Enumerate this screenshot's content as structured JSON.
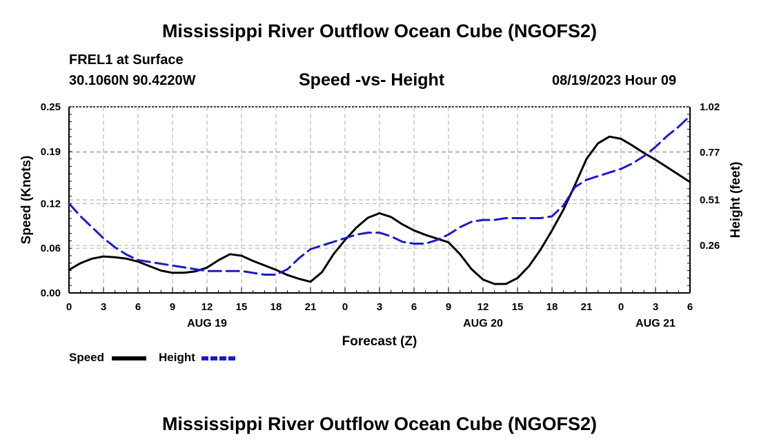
{
  "page": {
    "title_top": "Mississippi River Outflow Ocean Cube (NGOFS2)",
    "title_bottom": "Mississippi River Outflow Ocean Cube (NGOFS2)",
    "station": "FREL1 at Surface",
    "coords": "30.1060N  90.4220W",
    "datetime": "08/19/2023 Hour 09"
  },
  "legend": {
    "speed_label": "Speed",
    "height_label": "Height",
    "speed_color": "#000000",
    "height_color": "#1a1acc"
  },
  "chart_data": {
    "type": "line",
    "title": "Speed -vs- Height",
    "xlabel": "Forecast (Z)",
    "ylabel": "Speed (Knots)",
    "ylabel_right": "Height (feet)",
    "x_range": [
      0,
      54
    ],
    "ylim": [
      0,
      0.25
    ],
    "ylim_right": [
      0.0,
      1.02
    ],
    "yticks": [
      0.0,
      0.06,
      0.12,
      0.19,
      0.25
    ],
    "yticks_labels": [
      "0.00",
      "0.06",
      "0.12",
      "0.19",
      "0.25"
    ],
    "yticks_right": [
      0.26,
      0.51,
      0.77,
      1.02
    ],
    "yticks_right_labels": [
      "0.26",
      "0.51",
      "0.77",
      "1.02"
    ],
    "xticks": [
      0,
      3,
      6,
      9,
      12,
      15,
      18,
      21,
      24,
      27,
      30,
      33,
      36,
      39,
      42,
      45,
      48,
      51,
      54
    ],
    "xtick_labels": [
      "0",
      "3",
      "6",
      "9",
      "12",
      "15",
      "18",
      "21",
      "0",
      "3",
      "6",
      "9",
      "12",
      "15",
      "18",
      "21",
      "0",
      "3",
      "6"
    ],
    "date_labels": [
      {
        "hour": 12,
        "text": "AUG 19"
      },
      {
        "hour": 36,
        "text": "AUG 20"
      },
      {
        "hour": 51,
        "text": "AUG 21"
      }
    ],
    "grid": true,
    "series": [
      {
        "name": "Speed",
        "axis": "left",
        "x": [
          0,
          1,
          2,
          3,
          4,
          5,
          6,
          7,
          8,
          9,
          10,
          11,
          12,
          13,
          14,
          15,
          16,
          17,
          18,
          19,
          20,
          21,
          22,
          23,
          24,
          25,
          26,
          27,
          28,
          29,
          30,
          31,
          32,
          33,
          34,
          35,
          36,
          37,
          38,
          39,
          40,
          41,
          42,
          43,
          44,
          45,
          46,
          47,
          48,
          49,
          50,
          51,
          52,
          53,
          54
        ],
        "values": [
          0.031,
          0.04,
          0.046,
          0.049,
          0.048,
          0.046,
          0.042,
          0.036,
          0.03,
          0.027,
          0.027,
          0.029,
          0.034,
          0.044,
          0.052,
          0.05,
          0.043,
          0.037,
          0.031,
          0.024,
          0.019,
          0.015,
          0.028,
          0.052,
          0.071,
          0.088,
          0.101,
          0.107,
          0.102,
          0.092,
          0.084,
          0.078,
          0.073,
          0.068,
          0.052,
          0.032,
          0.018,
          0.012,
          0.012,
          0.02,
          0.036,
          0.058,
          0.084,
          0.112,
          0.145,
          0.18,
          0.201,
          0.21,
          0.207,
          0.198,
          0.188,
          0.179,
          0.169,
          0.159,
          0.149
        ]
      },
      {
        "name": "Height",
        "axis": "right",
        "x": [
          0,
          1,
          2,
          3,
          4,
          5,
          6,
          7,
          8,
          9,
          10,
          11,
          12,
          13,
          14,
          15,
          16,
          17,
          18,
          19,
          20,
          21,
          22,
          23,
          24,
          25,
          26,
          27,
          28,
          29,
          30,
          31,
          32,
          33,
          34,
          35,
          36,
          37,
          38,
          39,
          40,
          41,
          42,
          43,
          44,
          45,
          46,
          47,
          48,
          49,
          50,
          51,
          52,
          53,
          54
        ],
        "values": [
          0.49,
          0.42,
          0.36,
          0.3,
          0.25,
          0.21,
          0.18,
          0.17,
          0.16,
          0.15,
          0.14,
          0.13,
          0.12,
          0.12,
          0.12,
          0.12,
          0.11,
          0.1,
          0.1,
          0.13,
          0.19,
          0.24,
          0.26,
          0.28,
          0.3,
          0.32,
          0.33,
          0.33,
          0.31,
          0.28,
          0.27,
          0.27,
          0.29,
          0.32,
          0.36,
          0.39,
          0.4,
          0.4,
          0.41,
          0.41,
          0.41,
          0.41,
          0.42,
          0.48,
          0.58,
          0.62,
          0.64,
          0.66,
          0.68,
          0.71,
          0.75,
          0.8,
          0.86,
          0.91,
          0.97
        ]
      }
    ]
  }
}
